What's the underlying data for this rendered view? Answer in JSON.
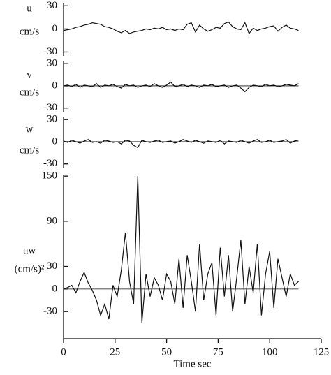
{
  "chart_data": [
    {
      "type": "line",
      "ylabel": [
        "u",
        "cm/s"
      ],
      "xlim": [
        0,
        125
      ],
      "ylim": [
        -35,
        33
      ],
      "yticks": [
        -30,
        0,
        30
      ],
      "x": [
        0,
        2,
        4,
        6,
        8,
        10,
        12,
        14,
        16,
        18,
        20,
        22,
        24,
        26,
        28,
        30,
        32,
        34,
        36,
        38,
        40,
        42,
        44,
        46,
        48,
        50,
        52,
        54,
        56,
        58,
        60,
        62,
        64,
        66,
        68,
        70,
        72,
        74,
        76,
        78,
        80,
        82,
        84,
        86,
        88,
        90,
        92,
        94,
        96,
        98,
        100,
        102,
        104,
        106,
        108,
        110,
        112,
        114
      ],
      "series": [
        {
          "color": "#111111",
          "values": [
            -2,
            -1,
            0,
            2,
            3,
            5,
            6,
            8,
            7,
            6,
            3,
            2,
            0,
            -3,
            -5,
            -2,
            -6,
            -4,
            -3,
            -2,
            0,
            -1,
            1,
            0,
            2,
            -1,
            0,
            -2,
            0,
            -1,
            6,
            8,
            -4,
            5,
            0,
            -3,
            -1,
            2,
            1,
            7,
            9,
            3,
            0,
            -1,
            8,
            -6,
            1,
            -2,
            0,
            1,
            3,
            4,
            -3,
            2,
            5,
            1,
            0,
            -2
          ]
        }
      ]
    },
    {
      "type": "line",
      "ylabel": [
        "v",
        "cm/s"
      ],
      "xlim": [
        0,
        125
      ],
      "ylim": [
        -35,
        33
      ],
      "yticks": [
        -30,
        0,
        30
      ],
      "x": [
        0,
        2,
        4,
        6,
        8,
        10,
        12,
        14,
        16,
        18,
        20,
        22,
        24,
        26,
        28,
        30,
        32,
        34,
        36,
        38,
        40,
        42,
        44,
        46,
        48,
        50,
        52,
        54,
        56,
        58,
        60,
        62,
        64,
        66,
        68,
        70,
        72,
        74,
        76,
        78,
        80,
        82,
        84,
        86,
        88,
        90,
        92,
        94,
        96,
        98,
        100,
        102,
        104,
        106,
        108,
        110,
        112,
        114
      ],
      "series": [
        {
          "color": "#111111",
          "values": [
            0,
            1,
            -1,
            2,
            -2,
            1,
            0,
            -1,
            3,
            -2,
            1,
            0,
            2,
            -1,
            -3,
            2,
            0,
            1,
            -2,
            0,
            1,
            -1,
            3,
            0,
            -2,
            1,
            5,
            -1,
            0,
            2,
            -1,
            1,
            0,
            -2,
            1,
            0,
            2,
            -1,
            0,
            1,
            -2,
            0,
            1,
            -3,
            -8,
            -2,
            1,
            0,
            -1,
            2,
            0,
            1,
            -1,
            0,
            2,
            1,
            0,
            3
          ]
        }
      ]
    },
    {
      "type": "line",
      "ylabel": [
        "w",
        "cm/s"
      ],
      "xlim": [
        0,
        125
      ],
      "ylim": [
        -35,
        33
      ],
      "yticks": [
        -30,
        0,
        30
      ],
      "x": [
        0,
        2,
        4,
        6,
        8,
        10,
        12,
        14,
        16,
        18,
        20,
        22,
        24,
        26,
        28,
        30,
        32,
        34,
        36,
        38,
        40,
        42,
        44,
        46,
        48,
        50,
        52,
        54,
        56,
        58,
        60,
        62,
        64,
        66,
        68,
        70,
        72,
        74,
        76,
        78,
        80,
        82,
        84,
        86,
        88,
        90,
        92,
        94,
        96,
        98,
        100,
        102,
        104,
        106,
        108,
        110,
        112,
        114
      ],
      "series": [
        {
          "color": "#111111",
          "values": [
            1,
            -1,
            2,
            0,
            -2,
            1,
            3,
            -1,
            0,
            -2,
            2,
            1,
            -1,
            0,
            -3,
            2,
            1,
            -5,
            -8,
            2,
            0,
            -1,
            1,
            2,
            -1,
            0,
            1,
            -2,
            0,
            3,
            1,
            -1,
            2,
            0,
            -2,
            1,
            0,
            -1,
            2,
            -3,
            1,
            0,
            -1,
            2,
            0,
            -2,
            1,
            3,
            -1,
            0,
            2,
            -1,
            0,
            1,
            3,
            -2,
            1,
            2
          ]
        }
      ]
    },
    {
      "type": "line",
      "ylabel": [
        "uw",
        "(cm/s)²"
      ],
      "xlabel": "Time sec",
      "xlim": [
        0,
        125
      ],
      "xticks": [
        0,
        25,
        50,
        75,
        100,
        125
      ],
      "ylim": [
        -66,
        152
      ],
      "yticks": [
        -30,
        0,
        30,
        90,
        150
      ],
      "x": [
        0,
        2,
        4,
        6,
        8,
        10,
        12,
        14,
        16,
        18,
        20,
        22,
        24,
        26,
        28,
        30,
        32,
        34,
        36,
        38,
        40,
        42,
        44,
        46,
        48,
        50,
        52,
        54,
        56,
        58,
        60,
        62,
        64,
        66,
        68,
        70,
        72,
        74,
        76,
        78,
        80,
        82,
        84,
        86,
        88,
        90,
        92,
        94,
        96,
        98,
        100,
        102,
        104,
        106,
        108,
        110,
        112,
        114
      ],
      "series": [
        {
          "color": "#111111",
          "values": [
            0,
            2,
            5,
            -5,
            10,
            22,
            8,
            -2,
            -15,
            -35,
            -20,
            -40,
            5,
            -10,
            25,
            75,
            10,
            -20,
            150,
            -45,
            20,
            -10,
            15,
            5,
            -15,
            20,
            10,
            -20,
            40,
            -25,
            45,
            10,
            -30,
            60,
            -15,
            20,
            35,
            -35,
            55,
            -10,
            45,
            -30,
            15,
            65,
            -20,
            30,
            -5,
            60,
            -35,
            20,
            50,
            -25,
            40,
            15,
            -10,
            20,
            5,
            10
          ]
        }
      ]
    }
  ]
}
